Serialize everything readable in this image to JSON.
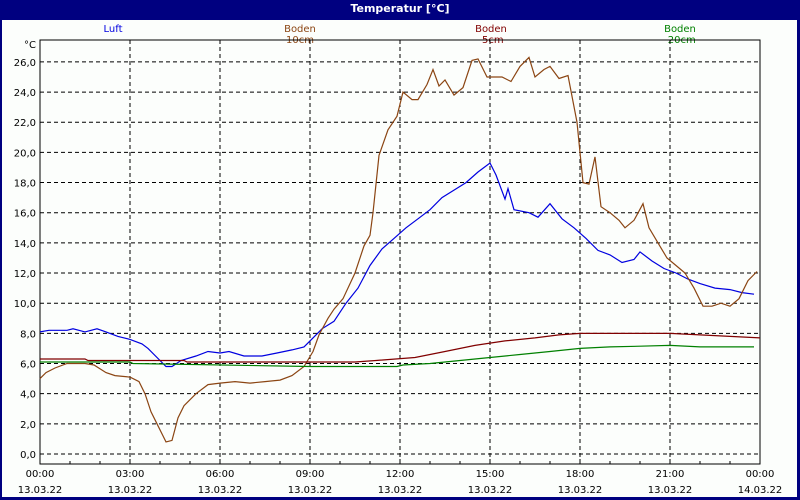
{
  "window": {
    "title": "Temperatur [°C]"
  },
  "legend": [
    {
      "label": "Luft",
      "color": "#0000e0",
      "x": 113
    },
    {
      "label": "Boden 10cm",
      "color": "#8b4513",
      "x": 300
    },
    {
      "label": "Boden -5cm",
      "color": "#800000",
      "x": 491
    },
    {
      "label": "Boden -20cm",
      "color": "#008000",
      "x": 680
    }
  ],
  "axis": {
    "y_unit": "°C",
    "y_ticks": [
      "0,0",
      "2,0",
      "4,0",
      "6,0",
      "8,0",
      "10,0",
      "12,0",
      "14,0",
      "16,0",
      "18,0",
      "20,0",
      "22,0",
      "24,0",
      "26,0"
    ],
    "x_ticks": [
      {
        "time": "00:00",
        "date": "13.03.22"
      },
      {
        "time": "03:00",
        "date": "13.03.22"
      },
      {
        "time": "06:00",
        "date": "13.03.22"
      },
      {
        "time": "09:00",
        "date": "13.03.22"
      },
      {
        "time": "12:00",
        "date": "13.03.22"
      },
      {
        "time": "15:00",
        "date": "13.03.22"
      },
      {
        "time": "18:00",
        "date": "13.03.22"
      },
      {
        "time": "21:00",
        "date": "13.03.22"
      },
      {
        "time": "00:00",
        "date": "14.03.22"
      }
    ]
  },
  "chart_data": {
    "type": "line",
    "title": "Temperatur [°C]",
    "xlabel": "",
    "ylabel": "°C",
    "ylim": [
      0,
      26
    ],
    "xlim_hours": [
      0,
      24
    ],
    "grid": true,
    "legend_position": "top",
    "x_tick_labels": [
      "00:00 13.03.22",
      "03:00 13.03.22",
      "06:00 13.03.22",
      "09:00 13.03.22",
      "12:00 13.03.22",
      "15:00 13.03.22",
      "18:00 13.03.22",
      "21:00 13.03.22",
      "00:00 14.03.22"
    ],
    "series": [
      {
        "name": "Luft",
        "color": "#0000e0",
        "points": [
          [
            0,
            8.1
          ],
          [
            0.3,
            8.2
          ],
          [
            0.9,
            8.2
          ],
          [
            1.1,
            8.3
          ],
          [
            1.5,
            8.1
          ],
          [
            1.9,
            8.3
          ],
          [
            2.2,
            8.1
          ],
          [
            2.6,
            7.8
          ],
          [
            3,
            7.6
          ],
          [
            3.4,
            7.3
          ],
          [
            3.6,
            7.0
          ],
          [
            4,
            6.2
          ],
          [
            4.2,
            5.8
          ],
          [
            4.4,
            5.8
          ],
          [
            4.7,
            6.2
          ],
          [
            5.2,
            6.5
          ],
          [
            5.6,
            6.8
          ],
          [
            6,
            6.7
          ],
          [
            6.3,
            6.8
          ],
          [
            6.8,
            6.5
          ],
          [
            7.4,
            6.5
          ],
          [
            7.9,
            6.7
          ],
          [
            8.4,
            6.9
          ],
          [
            8.8,
            7.1
          ],
          [
            9.1,
            7.7
          ],
          [
            9.4,
            8.3
          ],
          [
            9.8,
            8.8
          ],
          [
            10.2,
            10.0
          ],
          [
            10.6,
            11.0
          ],
          [
            11,
            12.5
          ],
          [
            11.4,
            13.6
          ],
          [
            11.8,
            14.3
          ],
          [
            12.2,
            15.0
          ],
          [
            12.6,
            15.6
          ],
          [
            13,
            16.2
          ],
          [
            13.4,
            17.0
          ],
          [
            13.8,
            17.5
          ],
          [
            14.2,
            18.0
          ],
          [
            14.6,
            18.7
          ],
          [
            15,
            19.3
          ],
          [
            15.2,
            18.5
          ],
          [
            15.5,
            16.9
          ],
          [
            15.6,
            17.6
          ],
          [
            15.8,
            16.2
          ],
          [
            16.3,
            16.0
          ],
          [
            16.6,
            15.7
          ],
          [
            17,
            16.6
          ],
          [
            17.4,
            15.6
          ],
          [
            17.8,
            15.0
          ],
          [
            18.2,
            14.3
          ],
          [
            18.6,
            13.5
          ],
          [
            19,
            13.2
          ],
          [
            19.4,
            12.7
          ],
          [
            19.8,
            12.9
          ],
          [
            20,
            13.4
          ],
          [
            20.4,
            12.8
          ],
          [
            20.8,
            12.3
          ],
          [
            21.2,
            12.0
          ],
          [
            21.6,
            11.6
          ],
          [
            22,
            11.3
          ],
          [
            22.5,
            11.0
          ],
          [
            23,
            10.9
          ],
          [
            23.4,
            10.7
          ],
          [
            23.8,
            10.6
          ]
        ]
      },
      {
        "name": "Boden 10cm",
        "color": "#8b4513",
        "points": [
          [
            0,
            5.0
          ],
          [
            0.2,
            5.4
          ],
          [
            0.5,
            5.7
          ],
          [
            0.9,
            6.0
          ],
          [
            1.5,
            6.0
          ],
          [
            1.8,
            5.9
          ],
          [
            2.2,
            5.4
          ],
          [
            2.5,
            5.2
          ],
          [
            3,
            5.1
          ],
          [
            3.3,
            4.8
          ],
          [
            3.5,
            4.0
          ],
          [
            3.7,
            2.8
          ],
          [
            3.9,
            2.0
          ],
          [
            4.1,
            1.2
          ],
          [
            4.2,
            0.8
          ],
          [
            4.4,
            0.9
          ],
          [
            4.6,
            2.4
          ],
          [
            4.8,
            3.2
          ],
          [
            5.2,
            4.0
          ],
          [
            5.6,
            4.6
          ],
          [
            6,
            4.7
          ],
          [
            6.5,
            4.8
          ],
          [
            7,
            4.7
          ],
          [
            7.5,
            4.8
          ],
          [
            8,
            4.9
          ],
          [
            8.4,
            5.2
          ],
          [
            8.8,
            5.8
          ],
          [
            9.1,
            6.8
          ],
          [
            9.3,
            7.9
          ],
          [
            9.6,
            9.0
          ],
          [
            9.8,
            9.6
          ],
          [
            10.1,
            10.3
          ],
          [
            10.5,
            12.0
          ],
          [
            10.8,
            13.8
          ],
          [
            11,
            14.5
          ],
          [
            11.1,
            16.0
          ],
          [
            11.3,
            19.8
          ],
          [
            11.6,
            21.5
          ],
          [
            11.9,
            22.4
          ],
          [
            12.1,
            24.0
          ],
          [
            12.4,
            23.5
          ],
          [
            12.6,
            23.5
          ],
          [
            12.9,
            24.5
          ],
          [
            13.1,
            25.5
          ],
          [
            13.3,
            24.4
          ],
          [
            13.5,
            24.8
          ],
          [
            13.8,
            23.8
          ],
          [
            14.1,
            24.3
          ],
          [
            14.4,
            26.1
          ],
          [
            14.6,
            26.2
          ],
          [
            14.9,
            25.0
          ],
          [
            15.4,
            25.0
          ],
          [
            15.7,
            24.7
          ],
          [
            16,
            25.7
          ],
          [
            16.3,
            26.3
          ],
          [
            16.5,
            25.0
          ],
          [
            16.8,
            25.5
          ],
          [
            17,
            25.7
          ],
          [
            17.3,
            24.9
          ],
          [
            17.6,
            25.1
          ],
          [
            17.9,
            22.0
          ],
          [
            18.1,
            18.0
          ],
          [
            18.3,
            17.9
          ],
          [
            18.5,
            19.7
          ],
          [
            18.7,
            16.4
          ],
          [
            19,
            16.0
          ],
          [
            19.3,
            15.5
          ],
          [
            19.5,
            15.0
          ],
          [
            19.8,
            15.5
          ],
          [
            20.1,
            16.6
          ],
          [
            20.3,
            15.0
          ],
          [
            20.6,
            14.0
          ],
          [
            20.9,
            13.0
          ],
          [
            21.2,
            12.5
          ],
          [
            21.5,
            12.0
          ],
          [
            21.8,
            11.0
          ],
          [
            22.1,
            9.8
          ],
          [
            22.4,
            9.8
          ],
          [
            22.7,
            10.0
          ],
          [
            23,
            9.8
          ],
          [
            23.3,
            10.3
          ],
          [
            23.6,
            11.5
          ],
          [
            23.9,
            12.1
          ]
        ]
      },
      {
        "name": "Boden -5cm",
        "color": "#800000",
        "points": [
          [
            0,
            6.3
          ],
          [
            1.5,
            6.3
          ],
          [
            1.6,
            6.2
          ],
          [
            4.8,
            6.2
          ],
          [
            4.9,
            6.1
          ],
          [
            9.5,
            6.1
          ],
          [
            10.5,
            6.1
          ],
          [
            11.2,
            6.2
          ],
          [
            12.5,
            6.4
          ],
          [
            13.5,
            6.8
          ],
          [
            14.5,
            7.2
          ],
          [
            15.5,
            7.5
          ],
          [
            16.5,
            7.7
          ],
          [
            17.3,
            7.9
          ],
          [
            18,
            8.0
          ],
          [
            21,
            8.0
          ],
          [
            22,
            7.9
          ],
          [
            23,
            7.8
          ],
          [
            24,
            7.7
          ]
        ]
      },
      {
        "name": "Boden -20cm",
        "color": "#008000",
        "points": [
          [
            0,
            6.1
          ],
          [
            3,
            6.1
          ],
          [
            3.1,
            6.0
          ],
          [
            9,
            5.8
          ],
          [
            11.9,
            5.8
          ],
          [
            12.1,
            5.9
          ],
          [
            13,
            6.0
          ],
          [
            14,
            6.2
          ],
          [
            15,
            6.4
          ],
          [
            16,
            6.6
          ],
          [
            17,
            6.8
          ],
          [
            18,
            7.0
          ],
          [
            19,
            7.1
          ],
          [
            20,
            7.15
          ],
          [
            21,
            7.2
          ],
          [
            22,
            7.1
          ],
          [
            23.8,
            7.1
          ]
        ]
      }
    ]
  }
}
